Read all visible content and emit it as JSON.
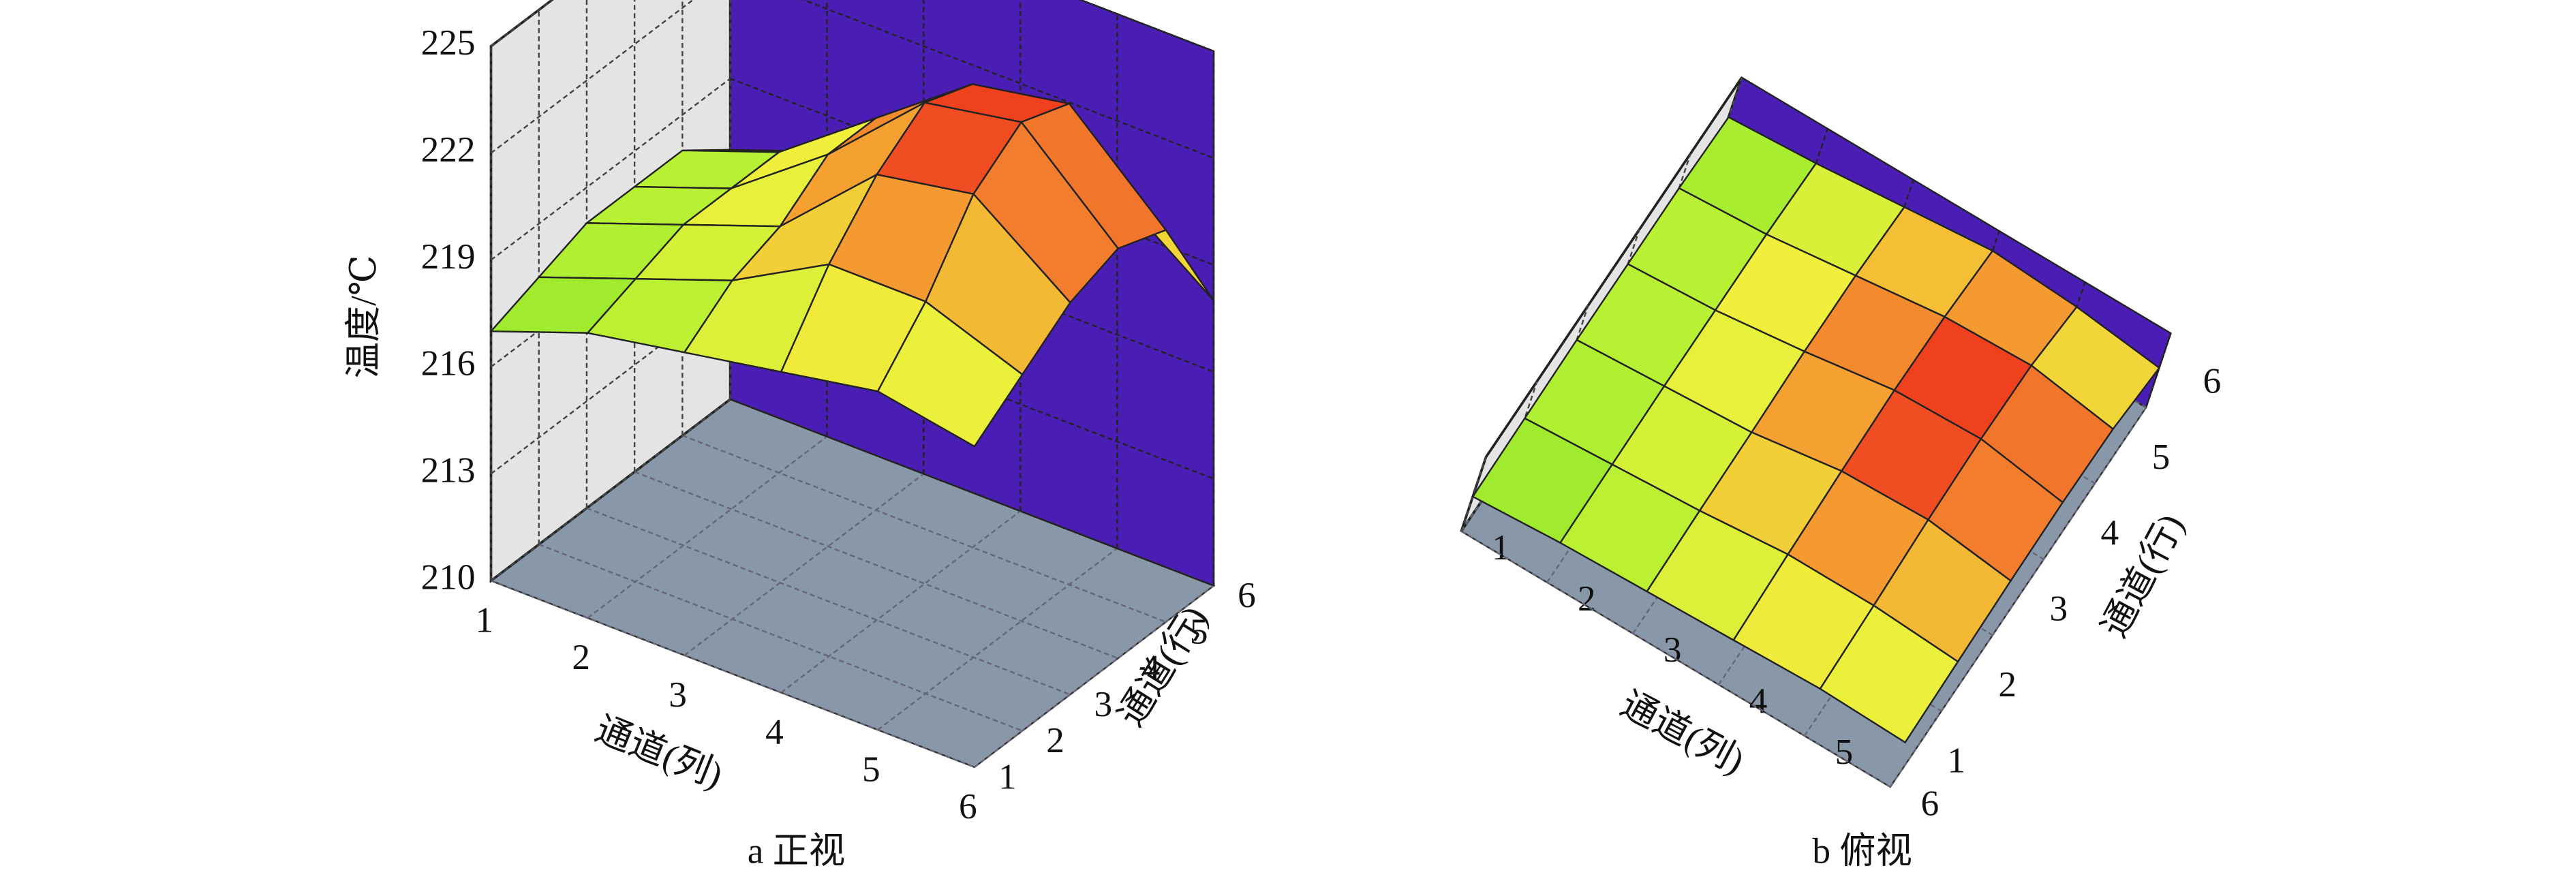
{
  "chart_data": [
    {
      "type": "surface3d",
      "caption": "a 正视",
      "x_label": "通道(列)",
      "y_label": "通道(行)",
      "z_label": "温度/℃",
      "x": [
        1,
        2,
        3,
        4,
        5,
        6
      ],
      "y": [
        1,
        2,
        3,
        4,
        5,
        6
      ],
      "z": [
        [
          217,
          218,
          218.5,
          219,
          219.5,
          219
        ],
        [
          217.5,
          218.5,
          219.5,
          221,
          221,
          220
        ],
        [
          218,
          219,
          220,
          222.5,
          223,
          221
        ],
        [
          218,
          219,
          221,
          223.5,
          224,
          221.5
        ],
        [
          218,
          219,
          221,
          223,
          223.5,
          221
        ],
        [
          217,
          218,
          219.5,
          221,
          220,
          218
        ]
      ],
      "zlim": [
        210,
        225
      ],
      "zticks": [
        210,
        213,
        216,
        219,
        222,
        225
      ]
    },
    {
      "type": "surface3d",
      "caption": "b 俯视",
      "x_label": "通道(列)",
      "y_label": "通道(行)",
      "x": [
        1,
        2,
        3,
        4,
        5,
        6
      ],
      "y": [
        1,
        2,
        3,
        4,
        5,
        6
      ],
      "z": [
        [
          217,
          218,
          218.5,
          219,
          219.5,
          219
        ],
        [
          217.5,
          218.5,
          219.5,
          221,
          221,
          220
        ],
        [
          218,
          219,
          220,
          222.5,
          223,
          221
        ],
        [
          218,
          219,
          221,
          223.5,
          224,
          221.5
        ],
        [
          218,
          219,
          221,
          223,
          223.5,
          221
        ],
        [
          217,
          218,
          219.5,
          221,
          220,
          218
        ]
      ],
      "zlim": [
        210,
        225
      ]
    }
  ]
}
